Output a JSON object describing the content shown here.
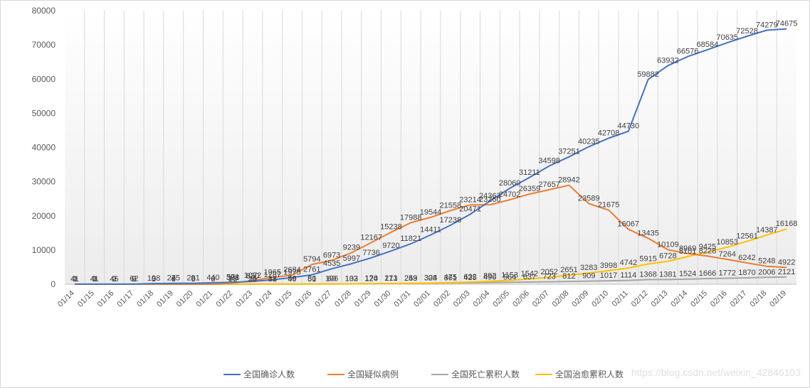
{
  "watermark": "https://blog.csdn.net/weixin_42846103",
  "chart_data": {
    "type": "line",
    "title": "",
    "xlabel": "",
    "ylabel": "",
    "ylim": [
      0,
      80000
    ],
    "yticks": [
      0,
      10000,
      20000,
      30000,
      40000,
      50000,
      60000,
      70000,
      80000
    ],
    "grid": "vertical",
    "legend_position": "bottom",
    "categories": [
      "01/14",
      "01/15",
      "01/16",
      "01/17",
      "01/18",
      "01/19",
      "01/20",
      "01/21",
      "01/22",
      "01/23",
      "01/24",
      "01/25",
      "01/26",
      "01/27",
      "01/28",
      "01/29",
      "01/30",
      "01/31",
      "02/01",
      "02/02",
      "02/03",
      "02/04",
      "02/05",
      "02/06",
      "02/07",
      "02/08",
      "02/09",
      "02/10",
      "02/11",
      "02/12",
      "02/13",
      "02/14",
      "02/15",
      "02/16",
      "02/17",
      "02/18",
      "02/19"
    ],
    "series": [
      {
        "name": "全国确诊人数",
        "color": "#4472c4",
        "values": [
          41,
          41,
          45,
          62,
          198,
          275,
          291,
          440,
          571,
          830,
          1287,
          1975,
          2761,
          4535,
          5997,
          7736,
          9720,
          11821,
          14411,
          17238,
          20471,
          24363,
          28060,
          31211,
          34598,
          37251,
          40235,
          42708,
          44730,
          59882,
          63932,
          66576,
          68584,
          70635,
          72528,
          74279,
          74675
        ]
      },
      {
        "name": "全国疑似病例",
        "color": "#ed7d31",
        "values": [
          0,
          0,
          0,
          0,
          0,
          0,
          0,
          0,
          393,
          1072,
          1965,
          2684,
          5794,
          6973,
          9239,
          12167,
          15238,
          17988,
          19544,
          21558,
          23214,
          23260,
          24702,
          26359,
          27657,
          28942,
          23589,
          21675,
          16067,
          13435,
          10109,
          8969,
          8228,
          7264,
          6242,
          5248,
          4922
        ]
      },
      {
        "name": "全国死亡累积人数",
        "color": "#a5a5a5",
        "values": [
          1,
          1,
          2,
          2,
          3,
          4,
          6,
          9,
          17,
          25,
          41,
          56,
          80,
          106,
          132,
          170,
          213,
          259,
          304,
          361,
          425,
          490,
          564,
          637,
          723,
          812,
          909,
          1017,
          1114,
          1368,
          1381,
          1524,
          1666,
          1772,
          1870,
          2006,
          2121
        ]
      },
      {
        "name": "全国治愈累积人数",
        "color": "#ffc000",
        "values": [
          0,
          0,
          0,
          0,
          0,
          0,
          0,
          0,
          28,
          34,
          38,
          49,
          51,
          60,
          103,
          124,
          171,
          243,
          328,
          475,
          632,
          892,
          1153,
          1542,
          2052,
          2651,
          3283,
          3998,
          4742,
          5915,
          6728,
          8101,
          9425,
          10853,
          12561,
          14387,
          16168
        ]
      }
    ]
  }
}
